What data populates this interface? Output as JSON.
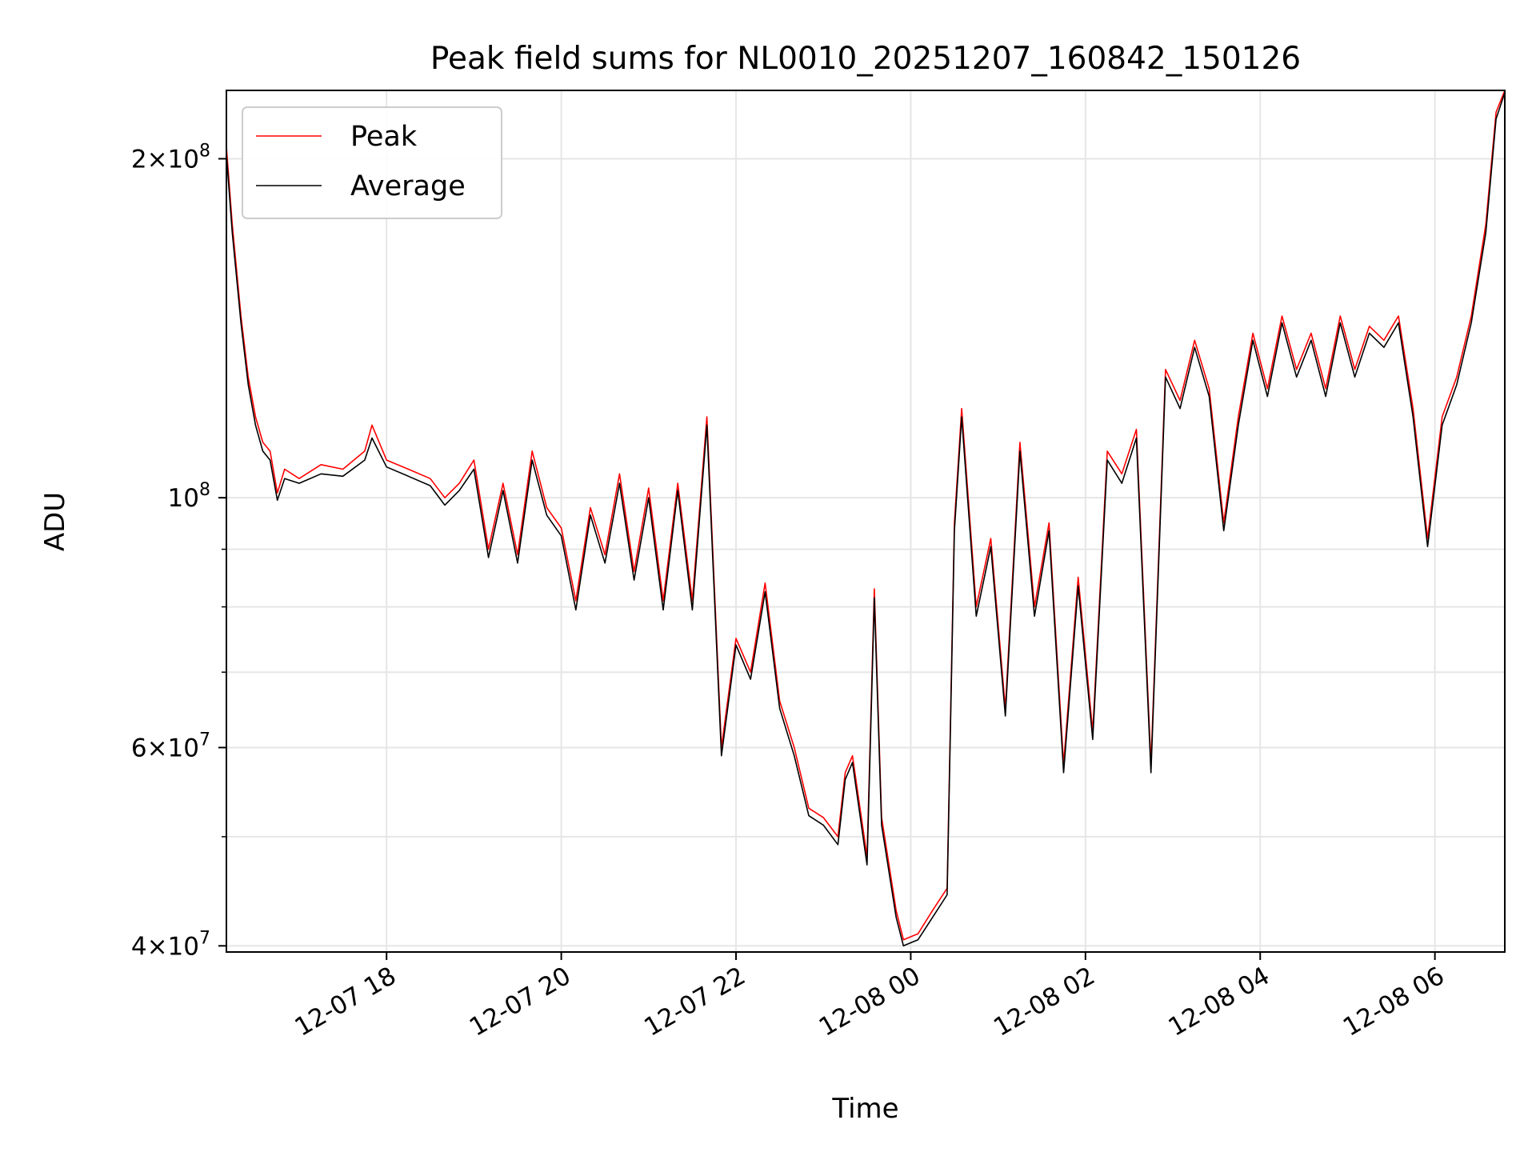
{
  "chart_data": {
    "type": "line",
    "title": "Peak field sums for NL0010_20251207_160842_150126",
    "xlabel": "Time",
    "ylabel": "ADU",
    "y_scale": "log",
    "ylim": [
      39500000,
      230000000
    ],
    "xlim": [
      "2025-12-07 16:10",
      "2025-12-08 06:48"
    ],
    "grid": true,
    "legend_position": "top-left",
    "x_ticks": [
      {
        "time": "2025-12-07 18:00",
        "label": "12-07 18"
      },
      {
        "time": "2025-12-07 20:00",
        "label": "12-07 20"
      },
      {
        "time": "2025-12-07 22:00",
        "label": "12-07 22"
      },
      {
        "time": "2025-12-08 00:00",
        "label": "12-08 00"
      },
      {
        "time": "2025-12-08 02:00",
        "label": "12-08 02"
      },
      {
        "time": "2025-12-08 04:00",
        "label": "12-08 04"
      },
      {
        "time": "2025-12-08 06:00",
        "label": "12-08 06"
      }
    ],
    "y_major_ticks": [
      {
        "value": 40000000,
        "mantissa": "4",
        "exponent": "7"
      },
      {
        "value": 60000000,
        "mantissa": "6",
        "exponent": "7"
      },
      {
        "value": 100000000,
        "mantissa": "",
        "exponent": "8"
      },
      {
        "value": 200000000,
        "mantissa": "2",
        "exponent": "8"
      }
    ],
    "y_minor_gridlines": [
      50000000,
      70000000,
      80000000,
      90000000
    ],
    "colors": {
      "Peak": "#ff0000",
      "Average": "#000000"
    },
    "series": [
      {
        "name": "Peak",
        "points": [
          [
            "2025-12-07 16:10",
            205000000
          ],
          [
            "2025-12-07 16:14",
            175000000
          ],
          [
            "2025-12-07 16:20",
            145000000
          ],
          [
            "2025-12-07 16:25",
            128000000
          ],
          [
            "2025-12-07 16:30",
            118000000
          ],
          [
            "2025-12-07 16:35",
            112000000
          ],
          [
            "2025-12-07 16:40",
            110000000
          ],
          [
            "2025-12-07 16:45",
            101000000
          ],
          [
            "2025-12-07 16:50",
            106000000
          ],
          [
            "2025-12-07 17:00",
            104000000
          ],
          [
            "2025-12-07 17:15",
            107000000
          ],
          [
            "2025-12-07 17:30",
            106000000
          ],
          [
            "2025-12-07 17:45",
            110000000
          ],
          [
            "2025-12-07 17:50",
            116000000
          ],
          [
            "2025-12-07 18:00",
            108000000
          ],
          [
            "2025-12-07 18:15",
            106000000
          ],
          [
            "2025-12-07 18:30",
            104000000
          ],
          [
            "2025-12-07 18:40",
            100000000
          ],
          [
            "2025-12-07 18:50",
            103000000
          ],
          [
            "2025-12-07 19:00",
            108000000
          ],
          [
            "2025-12-07 19:10",
            90000000
          ],
          [
            "2025-12-07 19:20",
            103000000
          ],
          [
            "2025-12-07 19:30",
            89000000
          ],
          [
            "2025-12-07 19:40",
            110000000
          ],
          [
            "2025-12-07 19:50",
            98000000
          ],
          [
            "2025-12-07 20:00",
            94000000
          ],
          [
            "2025-12-07 20:10",
            81000000
          ],
          [
            "2025-12-07 20:20",
            98000000
          ],
          [
            "2025-12-07 20:30",
            89000000
          ],
          [
            "2025-12-07 20:40",
            105000000
          ],
          [
            "2025-12-07 20:50",
            86000000
          ],
          [
            "2025-12-07 21:00",
            102000000
          ],
          [
            "2025-12-07 21:10",
            81000000
          ],
          [
            "2025-12-07 21:20",
            103000000
          ],
          [
            "2025-12-07 21:30",
            81000000
          ],
          [
            "2025-12-07 21:40",
            118000000
          ],
          [
            "2025-12-07 21:50",
            60000000
          ],
          [
            "2025-12-07 22:00",
            75000000
          ],
          [
            "2025-12-07 22:10",
            70000000
          ],
          [
            "2025-12-07 22:20",
            84000000
          ],
          [
            "2025-12-07 22:30",
            66000000
          ],
          [
            "2025-12-07 22:40",
            60000000
          ],
          [
            "2025-12-07 22:50",
            53000000
          ],
          [
            "2025-12-07 23:00",
            52000000
          ],
          [
            "2025-12-07 23:10",
            50000000
          ],
          [
            "2025-12-07 23:15",
            57000000
          ],
          [
            "2025-12-07 23:20",
            59000000
          ],
          [
            "2025-12-07 23:30",
            48000000
          ],
          [
            "2025-12-07 23:35",
            83000000
          ],
          [
            "2025-12-07 23:40",
            52000000
          ],
          [
            "2025-12-07 23:50",
            43000000
          ],
          [
            "2025-12-07 23:55",
            40500000
          ],
          [
            "2025-12-08 00:05",
            41000000
          ],
          [
            "2025-12-08 00:15",
            43000000
          ],
          [
            "2025-12-08 00:25",
            45000000
          ],
          [
            "2025-12-08 00:30",
            95000000
          ],
          [
            "2025-12-08 00:35",
            120000000
          ],
          [
            "2025-12-08 00:45",
            80000000
          ],
          [
            "2025-12-08 00:55",
            92000000
          ],
          [
            "2025-12-08 01:05",
            65000000
          ],
          [
            "2025-12-08 01:15",
            112000000
          ],
          [
            "2025-12-08 01:25",
            80000000
          ],
          [
            "2025-12-08 01:35",
            95000000
          ],
          [
            "2025-12-08 01:45",
            58000000
          ],
          [
            "2025-12-08 01:55",
            85000000
          ],
          [
            "2025-12-08 02:05",
            62000000
          ],
          [
            "2025-12-08 02:15",
            110000000
          ],
          [
            "2025-12-08 02:25",
            105000000
          ],
          [
            "2025-12-08 02:35",
            115000000
          ],
          [
            "2025-12-08 02:45",
            58000000
          ],
          [
            "2025-12-08 02:55",
            130000000
          ],
          [
            "2025-12-08 03:05",
            122000000
          ],
          [
            "2025-12-08 03:15",
            138000000
          ],
          [
            "2025-12-08 03:25",
            125000000
          ],
          [
            "2025-12-08 03:35",
            95000000
          ],
          [
            "2025-12-08 03:45",
            118000000
          ],
          [
            "2025-12-08 03:55",
            140000000
          ],
          [
            "2025-12-08 04:05",
            125000000
          ],
          [
            "2025-12-08 04:15",
            145000000
          ],
          [
            "2025-12-08 04:25",
            130000000
          ],
          [
            "2025-12-08 04:35",
            140000000
          ],
          [
            "2025-12-08 04:45",
            125000000
          ],
          [
            "2025-12-08 04:55",
            145000000
          ],
          [
            "2025-12-08 05:05",
            130000000
          ],
          [
            "2025-12-08 05:15",
            142000000
          ],
          [
            "2025-12-08 05:25",
            138000000
          ],
          [
            "2025-12-08 05:35",
            145000000
          ],
          [
            "2025-12-08 05:45",
            120000000
          ],
          [
            "2025-12-08 05:55",
            92000000
          ],
          [
            "2025-12-08 06:05",
            118000000
          ],
          [
            "2025-12-08 06:15",
            128000000
          ],
          [
            "2025-12-08 06:25",
            145000000
          ],
          [
            "2025-12-08 06:35",
            175000000
          ],
          [
            "2025-12-08 06:42",
            220000000
          ],
          [
            "2025-12-08 06:48",
            232000000
          ]
        ]
      },
      {
        "name": "Average",
        "points": [
          [
            "2025-12-07 16:10",
            202000000
          ],
          [
            "2025-12-07 16:14",
            172000000
          ],
          [
            "2025-12-07 16:20",
            143000000
          ],
          [
            "2025-12-07 16:25",
            126000000
          ],
          [
            "2025-12-07 16:30",
            116000000
          ],
          [
            "2025-12-07 16:35",
            110000000
          ],
          [
            "2025-12-07 16:40",
            108000000
          ],
          [
            "2025-12-07 16:45",
            99500000
          ],
          [
            "2025-12-07 16:50",
            104000000
          ],
          [
            "2025-12-07 17:00",
            103000000
          ],
          [
            "2025-12-07 17:15",
            105000000
          ],
          [
            "2025-12-07 17:30",
            104500000
          ],
          [
            "2025-12-07 17:45",
            108000000
          ],
          [
            "2025-12-07 17:50",
            113000000
          ],
          [
            "2025-12-07 18:00",
            106500000
          ],
          [
            "2025-12-07 18:15",
            104500000
          ],
          [
            "2025-12-07 18:30",
            102500000
          ],
          [
            "2025-12-07 18:40",
            98500000
          ],
          [
            "2025-12-07 18:50",
            101500000
          ],
          [
            "2025-12-07 19:00",
            106000000
          ],
          [
            "2025-12-07 19:10",
            88500000
          ],
          [
            "2025-12-07 19:20",
            101500000
          ],
          [
            "2025-12-07 19:30",
            87500000
          ],
          [
            "2025-12-07 19:40",
            108000000
          ],
          [
            "2025-12-07 19:50",
            96500000
          ],
          [
            "2025-12-07 20:00",
            92500000
          ],
          [
            "2025-12-07 20:10",
            79500000
          ],
          [
            "2025-12-07 20:20",
            96500000
          ],
          [
            "2025-12-07 20:30",
            87500000
          ],
          [
            "2025-12-07 20:40",
            103000000
          ],
          [
            "2025-12-07 20:50",
            84500000
          ],
          [
            "2025-12-07 21:00",
            100000000
          ],
          [
            "2025-12-07 21:10",
            79500000
          ],
          [
            "2025-12-07 21:20",
            101500000
          ],
          [
            "2025-12-07 21:30",
            79500000
          ],
          [
            "2025-12-07 21:40",
            116000000
          ],
          [
            "2025-12-07 21:50",
            59000000
          ],
          [
            "2025-12-07 22:00",
            74000000
          ],
          [
            "2025-12-07 22:10",
            69000000
          ],
          [
            "2025-12-07 22:20",
            82500000
          ],
          [
            "2025-12-07 22:30",
            65000000
          ],
          [
            "2025-12-07 22:40",
            59000000
          ],
          [
            "2025-12-07 22:50",
            52200000
          ],
          [
            "2025-12-07 23:00",
            51200000
          ],
          [
            "2025-12-07 23:10",
            49200000
          ],
          [
            "2025-12-07 23:15",
            56200000
          ],
          [
            "2025-12-07 23:20",
            58200000
          ],
          [
            "2025-12-07 23:30",
            47200000
          ],
          [
            "2025-12-07 23:35",
            81500000
          ],
          [
            "2025-12-07 23:40",
            51200000
          ],
          [
            "2025-12-07 23:50",
            42400000
          ],
          [
            "2025-12-07 23:55",
            40000000
          ],
          [
            "2025-12-08 00:05",
            40500000
          ],
          [
            "2025-12-08 00:15",
            42400000
          ],
          [
            "2025-12-08 00:25",
            44400000
          ],
          [
            "2025-12-08 00:30",
            93500000
          ],
          [
            "2025-12-08 00:35",
            118000000
          ],
          [
            "2025-12-08 00:45",
            78500000
          ],
          [
            "2025-12-08 00:55",
            90500000
          ],
          [
            "2025-12-08 01:05",
            64000000
          ],
          [
            "2025-12-08 01:15",
            110000000
          ],
          [
            "2025-12-08 01:25",
            78500000
          ],
          [
            "2025-12-08 01:35",
            93500000
          ],
          [
            "2025-12-08 01:45",
            57000000
          ],
          [
            "2025-12-08 01:55",
            83500000
          ],
          [
            "2025-12-08 02:05",
            61000000
          ],
          [
            "2025-12-08 02:15",
            108000000
          ],
          [
            "2025-12-08 02:25",
            103000000
          ],
          [
            "2025-12-08 02:35",
            113000000
          ],
          [
            "2025-12-08 02:45",
            57000000
          ],
          [
            "2025-12-08 02:55",
            128000000
          ],
          [
            "2025-12-08 03:05",
            120000000
          ],
          [
            "2025-12-08 03:15",
            136000000
          ],
          [
            "2025-12-08 03:25",
            123000000
          ],
          [
            "2025-12-08 03:35",
            93500000
          ],
          [
            "2025-12-08 03:45",
            116000000
          ],
          [
            "2025-12-08 03:55",
            138000000
          ],
          [
            "2025-12-08 04:05",
            123000000
          ],
          [
            "2025-12-08 04:15",
            143000000
          ],
          [
            "2025-12-08 04:25",
            128000000
          ],
          [
            "2025-12-08 04:35",
            138000000
          ],
          [
            "2025-12-08 04:45",
            123000000
          ],
          [
            "2025-12-08 04:55",
            143000000
          ],
          [
            "2025-12-08 05:05",
            128000000
          ],
          [
            "2025-12-08 05:15",
            140000000
          ],
          [
            "2025-12-08 05:25",
            136000000
          ],
          [
            "2025-12-08 05:35",
            143000000
          ],
          [
            "2025-12-08 05:45",
            118000000
          ],
          [
            "2025-12-08 05:55",
            90500000
          ],
          [
            "2025-12-08 06:05",
            116000000
          ],
          [
            "2025-12-08 06:15",
            126000000
          ],
          [
            "2025-12-08 06:25",
            143000000
          ],
          [
            "2025-12-08 06:35",
            172000000
          ],
          [
            "2025-12-08 06:42",
            217000000
          ],
          [
            "2025-12-08 06:48",
            229000000
          ]
        ]
      }
    ]
  }
}
